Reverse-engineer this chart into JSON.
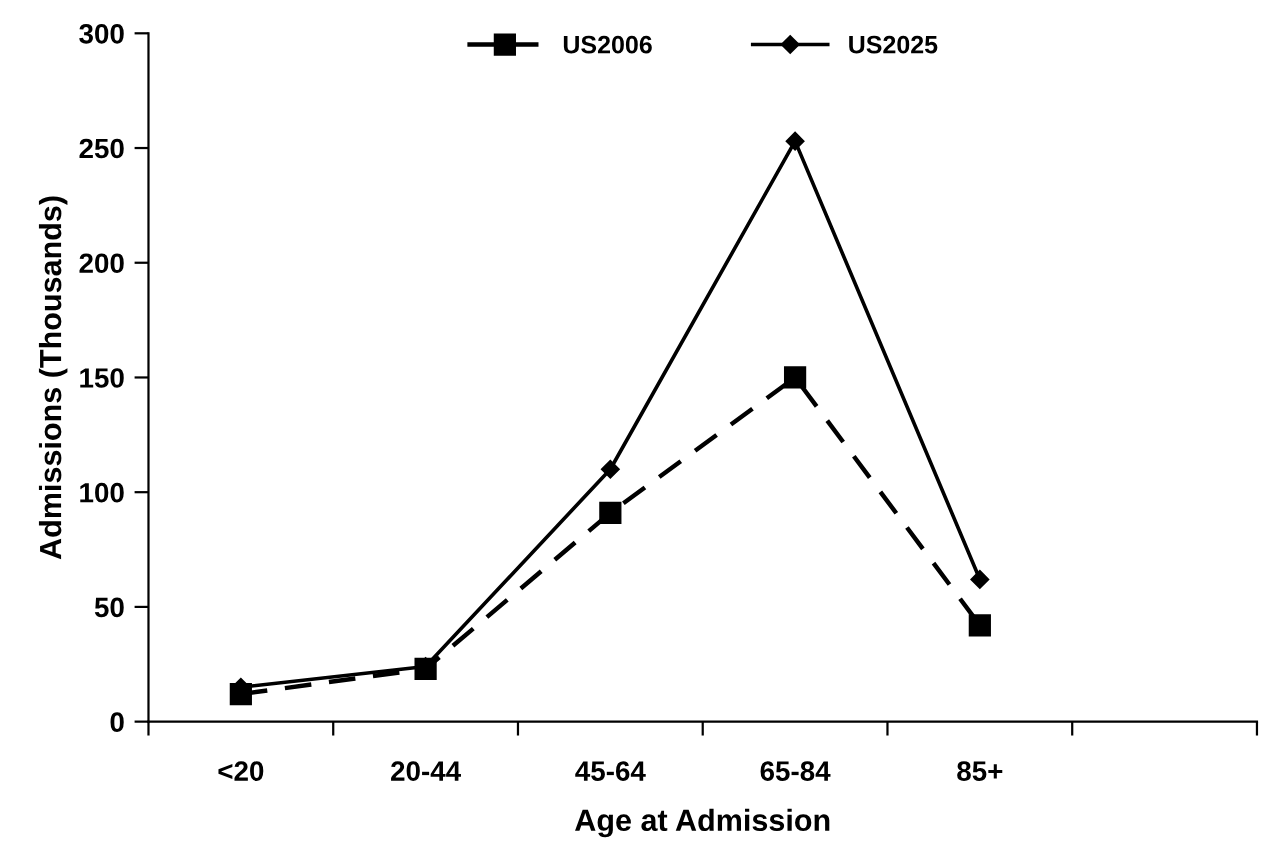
{
  "chart_data": {
    "type": "line",
    "xlabel": "Age at Admission",
    "ylabel": "Admissions (Thousands)",
    "categories": [
      "<20",
      "20-44",
      "45-64",
      "65-84",
      "85+",
      null
    ],
    "series": [
      {
        "name": "US2006",
        "color": "#000000",
        "marker": "square",
        "line_style": "dashed",
        "values": [
          12,
          23,
          91,
          150,
          42,
          null
        ]
      },
      {
        "name": "US2025",
        "color": "#000000",
        "marker": "diamond",
        "line_style": "solid",
        "values": [
          15,
          24,
          110,
          253,
          62,
          null
        ]
      }
    ],
    "ylim": [
      0,
      300
    ],
    "yticks": [
      0,
      50,
      100,
      150,
      200,
      250,
      300
    ],
    "grid": false,
    "legend": "top"
  }
}
